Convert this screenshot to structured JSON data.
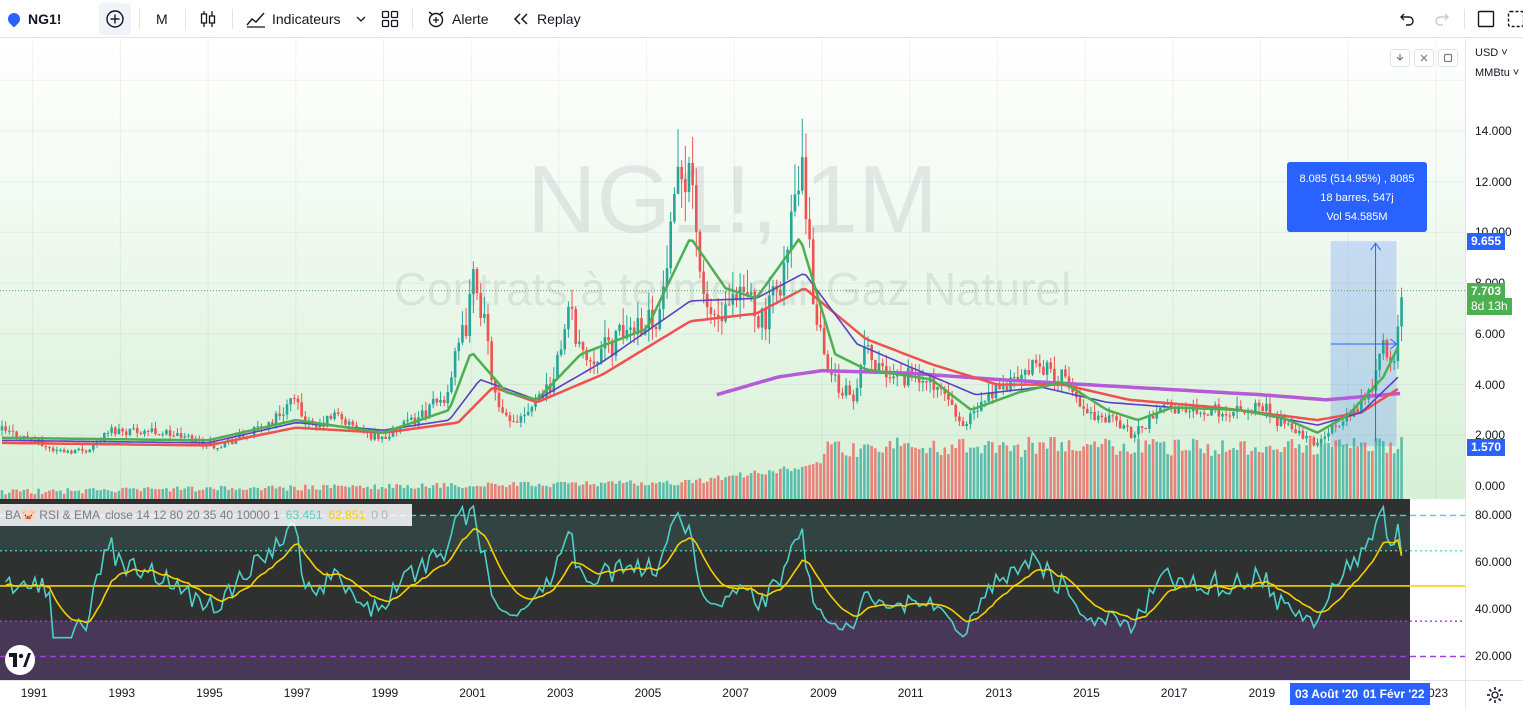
{
  "toolbar": {
    "symbol": "NG1!",
    "interval": "M",
    "indicators_label": "Indicateurs",
    "alert_label": "Alerte",
    "replay_label": "Replay"
  },
  "price_scale": {
    "currency": "USD",
    "unit": "MMBtu",
    "ticks": [
      "14.000",
      "12.000",
      "10.000",
      "8.000",
      "6.000",
      "4.000",
      "2.000",
      "0.000"
    ],
    "tag_high": "9.655",
    "tag_current_price": "7.703",
    "tag_countdown": "8d 13h",
    "tag_low": "1.570"
  },
  "rsi_scale": {
    "ticks": [
      "80.000",
      "60.000",
      "40.000",
      "20.000"
    ]
  },
  "time_scale": {
    "labels": [
      "1991",
      "1993",
      "1995",
      "1997",
      "1999",
      "2001",
      "2003",
      "2005",
      "2007",
      "2009",
      "2011",
      "2013",
      "2015",
      "2017",
      "2019"
    ],
    "partial_label": "023",
    "range_start": "03 Août '20",
    "range_end": "01 Févr '22"
  },
  "watermark": {
    "line1": "NG1!, 1M",
    "line2": "Contrats à terme sur Gaz Naturel"
  },
  "measure_box": {
    "line1": "8.085 (514.95%) , 8085",
    "line2": "18 barres, 547j",
    "line3": "Vol 54.585M"
  },
  "rsi_legend": {
    "name": "BA🐷 RSI & EMA",
    "params": "close 14 12 80 20 35 40 10000 1",
    "rsi_value": "63.451",
    "ema_value": "62.851",
    "extra": "0  0"
  },
  "colors": {
    "up": "#26a69a",
    "down": "#ef5350",
    "ema_fast": "#4caf50",
    "ema_mid": "#5b3fc4",
    "ema_slow": "#f05050",
    "sma_long": "#b45cd8",
    "rsi": "#4dd0c8",
    "rsi_ema": "#f5d000",
    "accent": "#2962ff"
  },
  "chart_data": [
    {
      "type": "candlestick",
      "title": "NG1!, 1M",
      "subtitle": "Contrats à terme sur Gaz Naturel",
      "ylabel": "USD / MMBtu",
      "ylim": [
        0,
        16
      ],
      "x_start": 1990.3,
      "x_end": 2022.2,
      "anchors": [
        [
          1990.3,
          2.2
        ],
        [
          1991.0,
          1.8
        ],
        [
          1991.5,
          1.4
        ],
        [
          1992.2,
          1.4
        ],
        [
          1992.8,
          2.2
        ],
        [
          1993.5,
          2.2
        ],
        [
          1994.0,
          2.1
        ],
        [
          1994.5,
          1.9
        ],
        [
          1995.2,
          1.6
        ],
        [
          1995.9,
          2.0
        ],
        [
          1996.5,
          2.6
        ],
        [
          1996.9,
          3.4
        ],
        [
          1997.4,
          2.2
        ],
        [
          1997.9,
          2.8
        ],
        [
          1998.5,
          2.1
        ],
        [
          1999.0,
          1.9
        ],
        [
          1999.7,
          2.6
        ],
        [
          2000.4,
          3.5
        ],
        [
          2000.9,
          6.5
        ],
        [
          2001.1,
          8.5
        ],
        [
          2001.6,
          3.0
        ],
        [
          2001.9,
          2.4
        ],
        [
          2002.4,
          3.3
        ],
        [
          2002.9,
          4.2
        ],
        [
          2003.2,
          7.0
        ],
        [
          2003.6,
          5.0
        ],
        [
          2004.2,
          5.6
        ],
        [
          2004.8,
          6.5
        ],
        [
          2005.3,
          6.8
        ],
        [
          2005.8,
          12.5
        ],
        [
          2006.0,
          13.0
        ],
        [
          2006.3,
          7.0
        ],
        [
          2006.7,
          6.5
        ],
        [
          2007.3,
          7.6
        ],
        [
          2007.7,
          6.4
        ],
        [
          2008.2,
          9.0
        ],
        [
          2008.5,
          12.8
        ],
        [
          2008.8,
          7.5
        ],
        [
          2009.2,
          4.2
        ],
        [
          2009.7,
          3.5
        ],
        [
          2010.0,
          5.5
        ],
        [
          2010.4,
          4.3
        ],
        [
          2011.0,
          4.3
        ],
        [
          2011.6,
          4.0
        ],
        [
          2012.2,
          2.3
        ],
        [
          2012.8,
          3.5
        ],
        [
          2013.4,
          4.2
        ],
        [
          2014.0,
          4.8
        ],
        [
          2014.5,
          4.2
        ],
        [
          2015.0,
          2.9
        ],
        [
          2015.6,
          2.7
        ],
        [
          2016.1,
          2.0
        ],
        [
          2016.7,
          3.0
        ],
        [
          2017.2,
          3.1
        ],
        [
          2017.8,
          3.0
        ],
        [
          2018.5,
          2.9
        ],
        [
          2019.0,
          3.2
        ],
        [
          2019.5,
          2.4
        ],
        [
          2020.2,
          1.7
        ],
        [
          2020.6,
          2.3
        ],
        [
          2021.0,
          2.7
        ],
        [
          2021.5,
          3.8
        ],
        [
          2021.8,
          5.4
        ],
        [
          2022.0,
          4.6
        ],
        [
          2022.2,
          7.7
        ]
      ],
      "ema_fast_anchors": [
        [
          1990.3,
          1.9
        ],
        [
          1995.0,
          1.8
        ],
        [
          1997.0,
          2.6
        ],
        [
          1999.0,
          2.1
        ],
        [
          2000.5,
          3.0
        ],
        [
          2001.0,
          5.3
        ],
        [
          2001.8,
          3.7
        ],
        [
          2002.5,
          3.4
        ],
        [
          2003.5,
          5.2
        ],
        [
          2005.0,
          6.2
        ],
        [
          2006.0,
          9.8
        ],
        [
          2006.8,
          7.8
        ],
        [
          2007.5,
          7.4
        ],
        [
          2008.5,
          9.8
        ],
        [
          2009.3,
          5.2
        ],
        [
          2010.0,
          4.6
        ],
        [
          2011.5,
          4.2
        ],
        [
          2012.4,
          3.0
        ],
        [
          2013.5,
          3.7
        ],
        [
          2014.5,
          4.1
        ],
        [
          2015.5,
          3.0
        ],
        [
          2016.2,
          2.6
        ],
        [
          2017.0,
          3.1
        ],
        [
          2018.5,
          3.0
        ],
        [
          2019.5,
          2.7
        ],
        [
          2020.3,
          2.1
        ],
        [
          2021.0,
          2.8
        ],
        [
          2021.8,
          4.3
        ],
        [
          2022.2,
          5.7
        ]
      ],
      "ema_mid_anchors": [
        [
          1990.3,
          1.8
        ],
        [
          1995.0,
          1.7
        ],
        [
          1997.0,
          2.5
        ],
        [
          1999.0,
          2.2
        ],
        [
          2000.5,
          2.6
        ],
        [
          2001.2,
          4.2
        ],
        [
          2002.5,
          3.4
        ],
        [
          2004.0,
          4.9
        ],
        [
          2006.0,
          7.3
        ],
        [
          2007.5,
          7.4
        ],
        [
          2008.6,
          8.4
        ],
        [
          2009.8,
          5.6
        ],
        [
          2011.0,
          4.7
        ],
        [
          2012.5,
          3.6
        ],
        [
          2014.0,
          3.9
        ],
        [
          2015.5,
          3.3
        ],
        [
          2017.0,
          3.1
        ],
        [
          2018.5,
          3.0
        ],
        [
          2020.3,
          2.4
        ],
        [
          2021.3,
          2.9
        ],
        [
          2022.2,
          4.4
        ]
      ],
      "ema_slow_anchors": [
        [
          1990.3,
          1.7
        ],
        [
          1995.0,
          1.6
        ],
        [
          1997.0,
          2.3
        ],
        [
          1999.0,
          2.1
        ],
        [
          2000.7,
          2.5
        ],
        [
          2001.5,
          3.9
        ],
        [
          2002.5,
          3.3
        ],
        [
          2004.0,
          4.4
        ],
        [
          2006.0,
          6.5
        ],
        [
          2007.5,
          6.8
        ],
        [
          2008.6,
          7.8
        ],
        [
          2010.0,
          5.8
        ],
        [
          2011.5,
          4.8
        ],
        [
          2013.0,
          4.0
        ],
        [
          2014.5,
          4.0
        ],
        [
          2016.0,
          3.4
        ],
        [
          2018.0,
          3.1
        ],
        [
          2020.3,
          2.6
        ],
        [
          2021.3,
          2.9
        ],
        [
          2022.2,
          3.9
        ]
      ],
      "sma_long_anchors": [
        [
          2006.6,
          3.6
        ],
        [
          2008.0,
          4.3
        ],
        [
          2009.0,
          4.55
        ],
        [
          2011.0,
          4.45
        ],
        [
          2013.0,
          4.2
        ],
        [
          2015.0,
          4.0
        ],
        [
          2017.0,
          3.8
        ],
        [
          2019.0,
          3.6
        ],
        [
          2020.5,
          3.4
        ],
        [
          2022.2,
          3.65
        ]
      ],
      "volume_note": "volume histogram along bottom"
    },
    {
      "type": "line",
      "title": "BA RSI & EMA",
      "ylim": [
        10,
        87
      ],
      "levels": [
        80,
        65,
        50,
        35,
        20
      ],
      "rsi_last": 63.451,
      "ema_last": 62.851
    }
  ]
}
